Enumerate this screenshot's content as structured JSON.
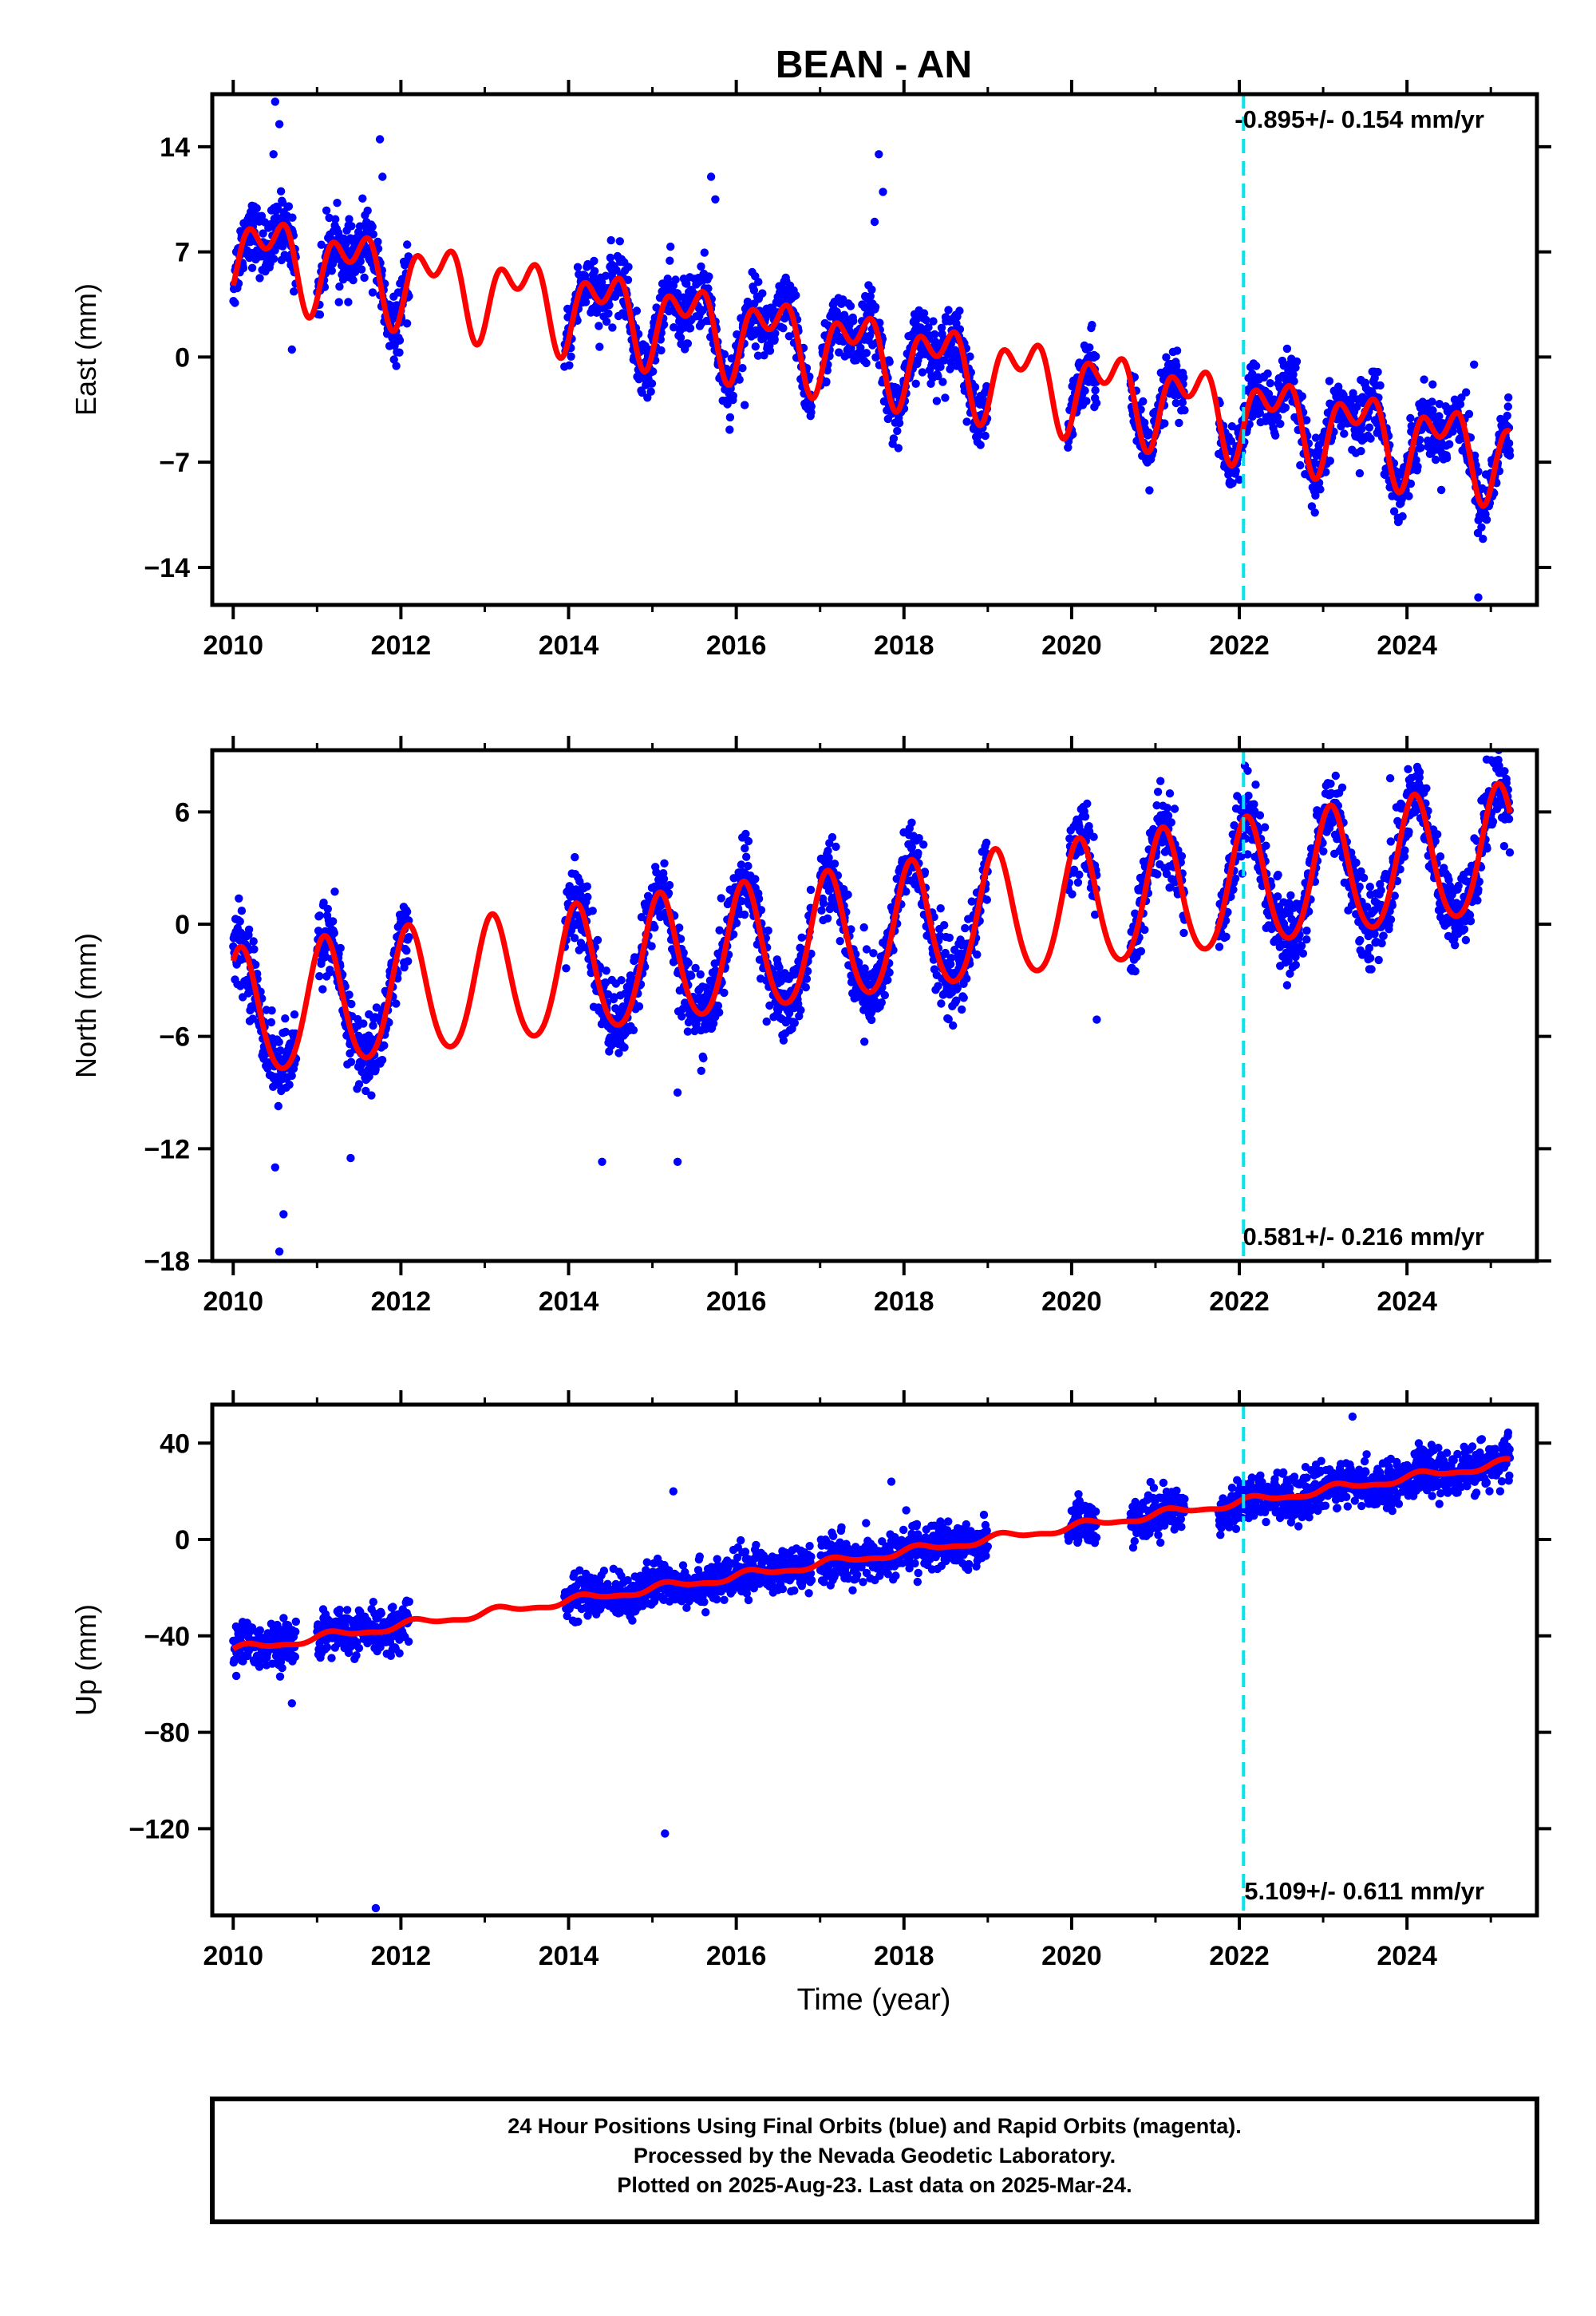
{
  "figure": {
    "title": "BEAN - AN",
    "xlabel": "Time (year)",
    "footer": [
      "24 Hour Positions Using Final Orbits (blue) and Rapid Orbits (magenta).",
      "Processed by the Nevada Geodetic Laboratory.",
      "Plotted on 2025-Aug-23. Last data on 2025-Mar-24."
    ],
    "colors": {
      "observations": "#0000ff",
      "model": "#ff0000",
      "marker": "#00e5ee"
    }
  },
  "chart_data": [
    {
      "type": "scatter",
      "panel": "east",
      "ylabel": "East (mm)",
      "rate_label": "-0.895+/- 0.154 mm/yr",
      "xlim": [
        2009.75,
        2025.55
      ],
      "ylim": [
        -16.5,
        17.5
      ],
      "yticks": [
        14,
        7,
        0,
        -7,
        -14
      ],
      "xticks": [
        2010,
        2012,
        2014,
        2016,
        2018,
        2020,
        2022,
        2024
      ],
      "vline": 2022.05,
      "data_segments": [
        [
          2010.0,
          2010.75
        ],
        [
          2011.0,
          2012.1
        ],
        [
          2013.95,
          2016.9
        ],
        [
          2017.0,
          2019.0
        ],
        [
          2019.95,
          2020.3
        ],
        [
          2020.7,
          2021.35
        ],
        [
          2021.75,
          2025.23
        ]
      ],
      "model": {
        "intercept": 7.1,
        "rate": -0.895,
        "annual_amp": 2.1,
        "annual_phase": -1.1,
        "semiannual_amp": 1.6,
        "semiannual_phase": -0.3
      },
      "noise_sd": 1.05,
      "outliers": [
        {
          "x": 2010.5,
          "y": 17.0
        },
        {
          "x": 2010.55,
          "y": 15.5
        },
        {
          "x": 2010.48,
          "y": 13.5
        },
        {
          "x": 2011.75,
          "y": 14.5
        },
        {
          "x": 2011.78,
          "y": 12.0
        },
        {
          "x": 2015.7,
          "y": 12.0
        },
        {
          "x": 2015.75,
          "y": 10.5
        },
        {
          "x": 2017.7,
          "y": 13.5
        },
        {
          "x": 2017.75,
          "y": 11.0
        },
        {
          "x": 2017.65,
          "y": 9.0
        },
        {
          "x": 2016.1,
          "y": -3.2
        },
        {
          "x": 2024.85,
          "y": -16.0
        },
        {
          "x": 2024.8,
          "y": -0.5
        },
        {
          "x": 2010.7,
          "y": 0.5
        }
      ]
    },
    {
      "type": "scatter",
      "panel": "north",
      "ylabel": "North (mm)",
      "rate_label": "0.581+/- 0.216 mm/yr",
      "xlim": [
        2009.75,
        2025.55
      ],
      "ylim": [
        -18.0,
        9.3
      ],
      "yticks": [
        6,
        0,
        -6,
        -12,
        -18
      ],
      "xticks": [
        2010,
        2012,
        2014,
        2016,
        2018,
        2020,
        2022,
        2024
      ],
      "vline": 2022.05,
      "data_segments": [
        [
          2010.0,
          2010.75
        ],
        [
          2011.0,
          2012.1
        ],
        [
          2013.95,
          2016.9
        ],
        [
          2017.0,
          2019.0
        ],
        [
          2019.95,
          2020.3
        ],
        [
          2020.7,
          2021.35
        ],
        [
          2021.75,
          2025.23
        ]
      ],
      "model": {
        "intercept": -5.0,
        "rate": 0.581,
        "annual_amp": 3.4,
        "annual_phase": 1.0,
        "semiannual_amp": 0.35,
        "semiannual_phase": 0.5
      },
      "noise_sd": 1.0,
      "outliers": [
        {
          "x": 2010.55,
          "y": -17.5
        },
        {
          "x": 2010.6,
          "y": -15.5
        },
        {
          "x": 2010.5,
          "y": -13.0
        },
        {
          "x": 2014.4,
          "y": -12.7
        },
        {
          "x": 2015.3,
          "y": -12.7
        },
        {
          "x": 2015.3,
          "y": -9.0
        },
        {
          "x": 2011.4,
          "y": -12.5
        },
        {
          "x": 2020.3,
          "y": -5.1
        },
        {
          "x": 2024.95,
          "y": 8.8
        },
        {
          "x": 2022.1,
          "y": 8.2
        },
        {
          "x": 2023.8,
          "y": 7.8
        }
      ]
    },
    {
      "type": "scatter",
      "panel": "up",
      "ylabel": "Up (mm)",
      "rate_label": "5.109+/- 0.611 mm/yr",
      "xlim": [
        2009.75,
        2025.55
      ],
      "ylim": [
        -156,
        56
      ],
      "yticks": [
        40,
        0,
        -40,
        -80,
        -120
      ],
      "xticks": [
        2010,
        2012,
        2014,
        2016,
        2018,
        2020,
        2022,
        2024
      ],
      "vline": 2022.05,
      "data_segments": [
        [
          2010.0,
          2010.75
        ],
        [
          2011.0,
          2012.1
        ],
        [
          2013.95,
          2016.9
        ],
        [
          2017.0,
          2019.0
        ],
        [
          2019.95,
          2020.3
        ],
        [
          2020.7,
          2021.35
        ],
        [
          2021.75,
          2025.23
        ]
      ],
      "model": {
        "intercept": -46.0,
        "rate": 5.109,
        "annual_amp": 1.5,
        "annual_phase": 0.4,
        "semiannual_amp": 0.6,
        "semiannual_phase": 0.0
      },
      "noise_sd": 4.5,
      "outliers": [
        {
          "x": 2011.7,
          "y": -153.0
        },
        {
          "x": 2015.15,
          "y": -122.0
        },
        {
          "x": 2023.35,
          "y": 51.0
        },
        {
          "x": 2010.7,
          "y": -68.0
        },
        {
          "x": 2015.25,
          "y": 20.0
        },
        {
          "x": 2017.85,
          "y": 24.0
        }
      ]
    }
  ]
}
